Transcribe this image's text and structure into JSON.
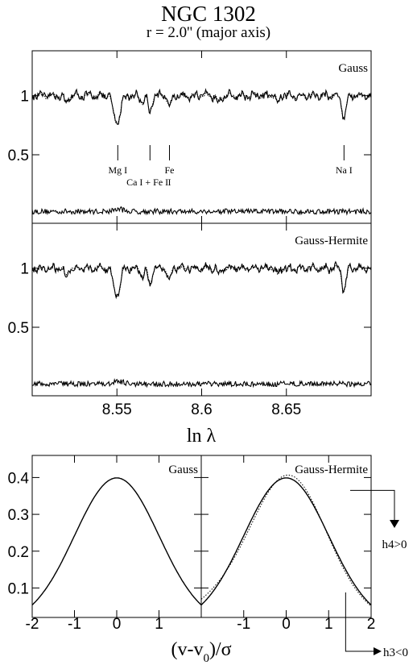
{
  "title": "NGC 1302",
  "subtitle": "r = 2.0'' (major axis)",
  "colors": {
    "ink": "#000000",
    "background": "#ffffff"
  },
  "chart_data": [
    {
      "type": "line",
      "panel": "spectrum-top",
      "label": "Gauss",
      "xlabel": "ln λ",
      "xlim": [
        8.5,
        8.7
      ],
      "ylim": [
        -0.08,
        1.38
      ],
      "yticks": [
        "0.5",
        "1"
      ],
      "xticks": [],
      "series": [
        {
          "kind": "galaxy spectrum (solid)",
          "baseline": 1.0
        },
        {
          "kind": "best-fit model (dotted)",
          "baseline": 1.0
        },
        {
          "kind": "residuals",
          "baseline": 0.02
        }
      ],
      "absorption_features": [
        {
          "x": 8.5505,
          "depth": 0.22,
          "width": 0.0016
        },
        {
          "x": 8.548,
          "depth": 0.09,
          "width": 0.001
        },
        {
          "x": 8.5695,
          "depth": 0.14,
          "width": 0.001
        },
        {
          "x": 8.581,
          "depth": 0.1,
          "width": 0.001
        },
        {
          "x": 8.684,
          "depth": 0.19,
          "width": 0.0012
        },
        {
          "x": 8.52,
          "depth": 0.07,
          "width": 0.001
        },
        {
          "x": 8.565,
          "depth": 0.06,
          "width": 0.001
        },
        {
          "x": 8.61,
          "depth": 0.05,
          "width": 0.001
        },
        {
          "x": 8.645,
          "depth": 0.06,
          "width": 0.001
        }
      ],
      "line_labels": [
        {
          "text": "Mg I",
          "x": 8.5505,
          "row": 1
        },
        {
          "text": "Ca I + Fe I",
          "x": 8.568,
          "row": 2
        },
        {
          "text": "Fe",
          "x": 8.581,
          "row": 1
        },
        {
          "text": "I",
          "x": 8.581,
          "row": 2
        },
        {
          "text": "Na I",
          "x": 8.684,
          "row": 1
        }
      ],
      "line_markers": [
        8.5505,
        8.5695,
        8.581,
        8.684
      ]
    },
    {
      "type": "line",
      "panel": "spectrum-bottom",
      "label": "Gauss-Hermite",
      "xlabel": "ln λ",
      "xlim": [
        8.5,
        8.7
      ],
      "ylim": [
        -0.08,
        1.38
      ],
      "yticks": [
        "0.5",
        "1"
      ],
      "xticks": [
        "8.55",
        "8.6",
        "8.65"
      ],
      "series": [
        {
          "kind": "galaxy spectrum (solid)",
          "baseline": 1.0
        },
        {
          "kind": "best-fit model (dotted)",
          "baseline": 1.0
        },
        {
          "kind": "residuals",
          "baseline": 0.02
        }
      ]
    },
    {
      "type": "line",
      "panel": "losvd-left",
      "label": "Gauss",
      "xlabel": "(v-v0)/σ",
      "xlim": [
        -2,
        2
      ],
      "ylim": [
        0.02,
        0.46
      ],
      "yticks": [
        "0.1",
        "0.2",
        "0.3",
        "0.4"
      ],
      "xticks": [
        "-2",
        "-1",
        "0",
        "1"
      ],
      "series": [
        {
          "kind": "line-of-sight velocity distribution (solid)",
          "x": [
            -2,
            -1.5,
            -1,
            -0.5,
            0,
            0.5,
            1,
            1.5,
            2
          ],
          "y": [
            0.054,
            0.129,
            0.242,
            0.352,
            0.399,
            0.352,
            0.242,
            0.129,
            0.054
          ]
        }
      ]
    },
    {
      "type": "line",
      "panel": "losvd-right",
      "label": "Gauss-Hermite",
      "xlabel": "(v-v0)/σ",
      "xlim": [
        -2,
        2
      ],
      "ylim": [
        0.02,
        0.46
      ],
      "yticks": [],
      "xticks": [
        "-1",
        "0",
        "1",
        "2"
      ],
      "series": [
        {
          "kind": "Gaussian (solid)",
          "x": [
            -2,
            -1,
            0,
            1,
            2
          ],
          "y": [
            0.054,
            0.242,
            0.399,
            0.242,
            0.054
          ]
        },
        {
          "kind": "Gauss-Hermite (dotted)",
          "h3": -0.03,
          "h4": 0.03
        }
      ],
      "annotations": [
        {
          "text": "h4>0",
          "points": "down",
          "from_y": 0.365
        },
        {
          "text": "h3<0",
          "points": "right",
          "from_x": 1.4
        }
      ]
    }
  ]
}
